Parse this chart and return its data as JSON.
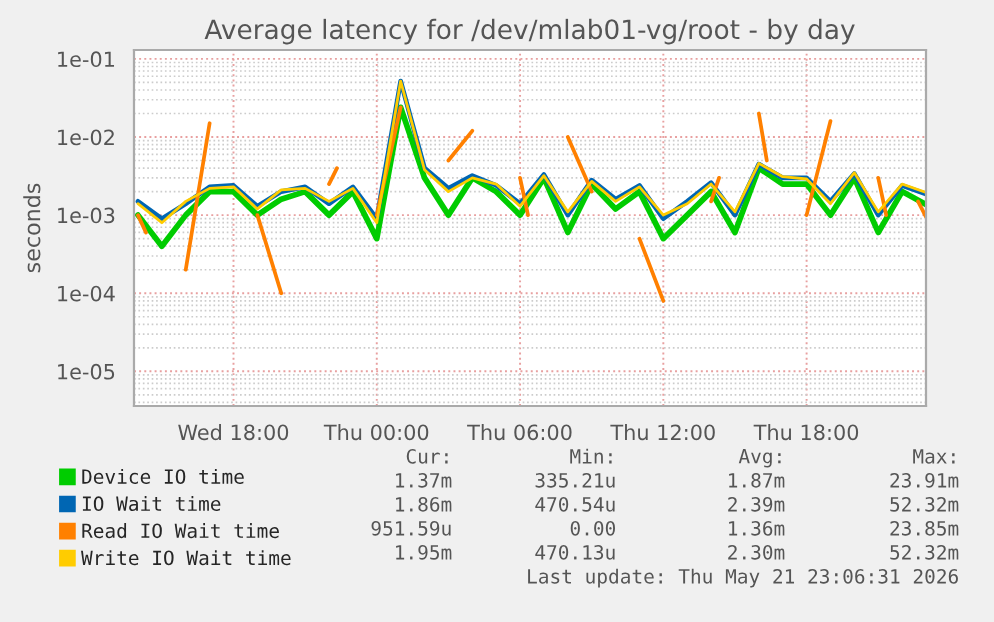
{
  "chart_data": {
    "type": "line",
    "title": "Average latency for /dev/mlab01-vg/root - by day",
    "ylabel": "seconds",
    "x": [
      "2026-05-20T14:00",
      "2026-05-20T15:00",
      "2026-05-20T16:00",
      "2026-05-20T17:00",
      "2026-05-20T18:00",
      "2026-05-20T19:00",
      "2026-05-20T20:00",
      "2026-05-20T21:00",
      "2026-05-20T22:00",
      "2026-05-20T23:00",
      "2026-05-21T00:00",
      "2026-05-21T01:00",
      "2026-05-21T02:00",
      "2026-05-21T03:00",
      "2026-05-21T04:00",
      "2026-05-21T05:00",
      "2026-05-21T06:00",
      "2026-05-21T07:00",
      "2026-05-21T08:00",
      "2026-05-21T09:00",
      "2026-05-21T10:00",
      "2026-05-21T11:00",
      "2026-05-21T12:00",
      "2026-05-21T13:00",
      "2026-05-21T14:00",
      "2026-05-21T15:00",
      "2026-05-21T16:00",
      "2026-05-21T17:00",
      "2026-05-21T18:00",
      "2026-05-21T19:00",
      "2026-05-21T20:00",
      "2026-05-21T21:00",
      "2026-05-21T22:00",
      "2026-05-21T23:00"
    ],
    "series": [
      {
        "name": "Device IO time",
        "color": "#00cc00",
        "values": [
          0.001,
          0.0004,
          0.001,
          0.002,
          0.002,
          0.001,
          0.0016,
          0.002,
          0.001,
          0.002,
          0.0005,
          0.024,
          0.003,
          0.001,
          0.003,
          0.002,
          0.001,
          0.003,
          0.0006,
          0.0025,
          0.0012,
          0.002,
          0.0005,
          0.001,
          0.002,
          0.0006,
          0.004,
          0.0025,
          0.0025,
          0.001,
          0.003,
          0.0006,
          0.002,
          0.00137
        ]
      },
      {
        "name": "IO Wait time",
        "color": "#0066b3",
        "values": [
          0.0015,
          0.0009,
          0.0014,
          0.0023,
          0.0024,
          0.0013,
          0.002,
          0.0023,
          0.0014,
          0.0023,
          0.0009,
          0.052,
          0.004,
          0.0022,
          0.0032,
          0.0024,
          0.0014,
          0.0033,
          0.001,
          0.0028,
          0.0016,
          0.0024,
          0.0009,
          0.0015,
          0.0026,
          0.001,
          0.0045,
          0.003,
          0.003,
          0.0015,
          0.0034,
          0.001,
          0.0024,
          0.00186
        ]
      },
      {
        "name": "Read IO Wait time",
        "color": "#ff8000",
        "x": [
          "2026-05-20T14:00",
          "2026-05-20T14:20",
          "2026-05-20T15:00",
          "2026-05-20T16:00",
          "2026-05-20T17:00",
          "2026-05-20T18:00",
          "2026-05-20T19:00",
          "2026-05-20T20:00",
          "2026-05-20T21:00",
          "2026-05-20T22:00",
          "2026-05-20T22:20",
          "2026-05-20T23:00",
          "2026-05-21T00:00",
          "2026-05-21T01:00",
          "2026-05-21T02:00",
          "2026-05-21T03:00",
          "2026-05-21T04:00",
          "2026-05-21T05:00",
          "2026-05-21T06:00",
          "2026-05-21T06:20",
          "2026-05-21T07:00",
          "2026-05-21T08:00",
          "2026-05-21T09:00",
          "2026-05-21T10:00",
          "2026-05-21T11:00",
          "2026-05-21T12:00",
          "2026-05-21T13:00",
          "2026-05-21T14:00",
          "2026-05-21T14:20",
          "2026-05-21T15:00",
          "2026-05-21T16:00",
          "2026-05-21T16:20",
          "2026-05-21T17:00",
          "2026-05-21T18:00",
          "2026-05-21T19:00",
          "2026-05-21T20:00",
          "2026-05-21T21:00",
          "2026-05-21T21:20",
          "2026-05-21T22:00",
          "2026-05-21T22:40",
          "2026-05-21T23:00"
        ],
        "values": [
          0.001,
          0.0006,
          null,
          0.0002,
          0.015,
          null,
          0.001,
          0.0001,
          null,
          0.0025,
          0.004,
          null,
          0.001,
          0.024,
          null,
          0.005,
          0.012,
          null,
          0.003,
          0.001,
          null,
          0.01,
          0.002,
          null,
          0.0005,
          8e-05,
          null,
          0.0015,
          0.003,
          null,
          0.02,
          0.005,
          null,
          0.001,
          0.016,
          null,
          0.003,
          0.001,
          null,
          0.0015,
          0.00095
        ]
      },
      {
        "name": "Write IO Wait time",
        "color": "#ffcc00",
        "values": [
          0.0014,
          0.0008,
          0.0015,
          0.0022,
          0.0023,
          0.0012,
          0.0021,
          0.0022,
          0.0015,
          0.0022,
          0.0008,
          0.052,
          0.0038,
          0.002,
          0.003,
          0.0025,
          0.0013,
          0.0032,
          0.0011,
          0.0027,
          0.0015,
          0.0023,
          0.001,
          0.0014,
          0.0025,
          0.0011,
          0.0046,
          0.0031,
          0.0029,
          0.0014,
          0.0035,
          0.0011,
          0.0025,
          0.00195
        ]
      }
    ],
    "log": "y",
    "xlim": [
      "2026-05-20T13:50",
      "2026-05-21T23:00"
    ],
    "xticks": [
      {
        "value": "2026-05-20T18:00",
        "label": "Wed 18:00"
      },
      {
        "value": "2026-05-21T00:00",
        "label": "Thu 00:00"
      },
      {
        "value": "2026-05-21T06:00",
        "label": "Thu 06:00"
      },
      {
        "value": "2026-05-21T12:00",
        "label": "Thu 12:00"
      },
      {
        "value": "2026-05-21T18:00",
        "label": "Thu 18:00"
      }
    ],
    "ylim": [
      3.6e-06,
      0.13
    ],
    "yticks": [
      {
        "value": 1e-05,
        "label": "1e-05"
      },
      {
        "value": 0.0001,
        "label": "1e-04"
      },
      {
        "value": 0.001,
        "label": "1e-03"
      },
      {
        "value": 0.01,
        "label": "1e-02"
      },
      {
        "value": 0.1,
        "label": "1e-01"
      }
    ],
    "grid": true,
    "legend": "bottom",
    "marker": "none",
    "line_style": "solid",
    "annotations": [
      "Cur:",
      "Min:",
      "Avg:",
      "Max:",
      "1.37m",
      "335.21u",
      "1.87m",
      "23.91m",
      "1.86m",
      "470.54u",
      "2.39m",
      "52.32m",
      "951.59u",
      "0.00",
      "1.36m",
      "23.85m",
      "1.95m",
      "470.13u",
      "2.30m",
      "52.32m",
      "Last update: Thu May 21 23:06:31 2026"
    ]
  }
}
